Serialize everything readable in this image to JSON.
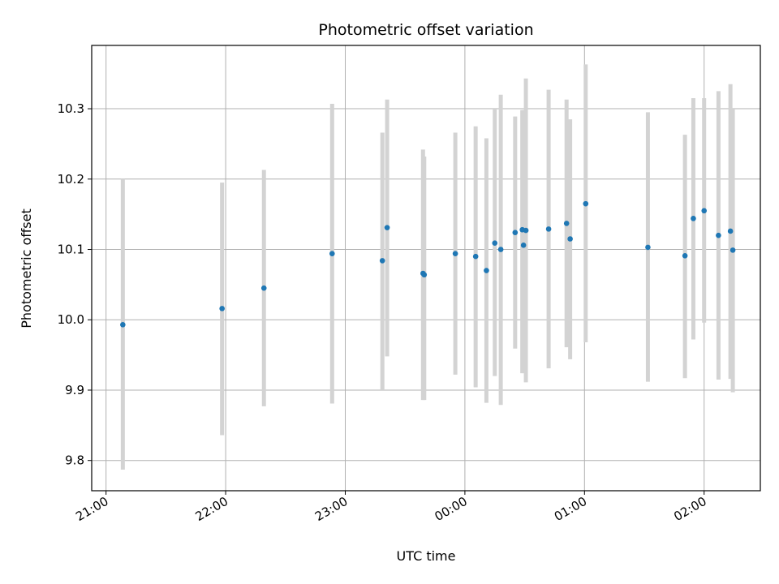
{
  "chart_data": {
    "type": "scatter",
    "title": "Photometric offset variation",
    "xlabel": "UTC time",
    "ylabel": "Photometric offset",
    "x_unit": "hours since 21:00 UTC",
    "xlim": [
      -0.12,
      5.47
    ],
    "ylim": [
      9.757,
      10.39
    ],
    "grid": true,
    "colors": {
      "point": "#1f77b4",
      "errorbar": "#d3d3d3",
      "grid": "#b0b0b0"
    },
    "x_ticks": [
      {
        "value": 0,
        "label": "21:00"
      },
      {
        "value": 1,
        "label": "22:00"
      },
      {
        "value": 2,
        "label": "23:00"
      },
      {
        "value": 3,
        "label": "00:00"
      },
      {
        "value": 4,
        "label": "01:00"
      },
      {
        "value": 5,
        "label": "02:00"
      }
    ],
    "y_ticks": [
      {
        "value": 9.8,
        "label": "9.8"
      },
      {
        "value": 9.9,
        "label": "9.9"
      },
      {
        "value": 10.0,
        "label": "10.0"
      },
      {
        "value": 10.1,
        "label": "10.1"
      },
      {
        "value": 10.2,
        "label": "10.2"
      },
      {
        "value": 10.3,
        "label": "10.3"
      }
    ],
    "points": [
      {
        "x": 0.14,
        "y": 9.993,
        "ylow": 9.787,
        "yhigh": 10.2
      },
      {
        "x": 0.97,
        "y": 10.016,
        "ylow": 9.836,
        "yhigh": 10.195
      },
      {
        "x": 1.32,
        "y": 10.045,
        "ylow": 9.877,
        "yhigh": 10.213
      },
      {
        "x": 1.89,
        "y": 10.094,
        "ylow": 9.881,
        "yhigh": 10.307
      },
      {
        "x": 2.31,
        "y": 10.084,
        "ylow": 9.901,
        "yhigh": 10.266
      },
      {
        "x": 2.35,
        "y": 10.131,
        "ylow": 9.948,
        "yhigh": 10.313
      },
      {
        "x": 2.65,
        "y": 10.066,
        "ylow": 9.886,
        "yhigh": 10.242
      },
      {
        "x": 2.66,
        "y": 10.064,
        "ylow": 9.886,
        "yhigh": 10.232
      },
      {
        "x": 2.92,
        "y": 10.094,
        "ylow": 9.922,
        "yhigh": 10.266
      },
      {
        "x": 3.09,
        "y": 10.09,
        "ylow": 9.904,
        "yhigh": 10.275
      },
      {
        "x": 3.18,
        "y": 10.07,
        "ylow": 9.882,
        "yhigh": 10.258
      },
      {
        "x": 3.25,
        "y": 10.109,
        "ylow": 9.92,
        "yhigh": 10.299
      },
      {
        "x": 3.3,
        "y": 10.1,
        "ylow": 9.879,
        "yhigh": 10.32
      },
      {
        "x": 3.42,
        "y": 10.124,
        "ylow": 9.959,
        "yhigh": 10.289
      },
      {
        "x": 3.48,
        "y": 10.128,
        "ylow": 9.924,
        "yhigh": 10.298
      },
      {
        "x": 3.49,
        "y": 10.106,
        "ylow": 9.924,
        "yhigh": 10.298
      },
      {
        "x": 3.51,
        "y": 10.127,
        "ylow": 9.911,
        "yhigh": 10.343
      },
      {
        "x": 3.7,
        "y": 10.129,
        "ylow": 9.931,
        "yhigh": 10.327
      },
      {
        "x": 3.85,
        "y": 10.137,
        "ylow": 9.961,
        "yhigh": 10.313
      },
      {
        "x": 3.88,
        "y": 10.115,
        "ylow": 9.944,
        "yhigh": 10.285
      },
      {
        "x": 4.01,
        "y": 10.165,
        "ylow": 9.968,
        "yhigh": 10.363
      },
      {
        "x": 4.53,
        "y": 10.103,
        "ylow": 9.912,
        "yhigh": 10.295
      },
      {
        "x": 4.84,
        "y": 10.091,
        "ylow": 9.917,
        "yhigh": 10.263
      },
      {
        "x": 4.91,
        "y": 10.144,
        "ylow": 9.972,
        "yhigh": 10.315
      },
      {
        "x": 5.0,
        "y": 10.155,
        "ylow": 9.996,
        "yhigh": 10.315
      },
      {
        "x": 5.12,
        "y": 10.12,
        "ylow": 9.915,
        "yhigh": 10.325
      },
      {
        "x": 5.22,
        "y": 10.126,
        "ylow": 9.916,
        "yhigh": 10.335
      },
      {
        "x": 5.24,
        "y": 10.099,
        "ylow": 9.897,
        "yhigh": 10.3
      }
    ]
  }
}
